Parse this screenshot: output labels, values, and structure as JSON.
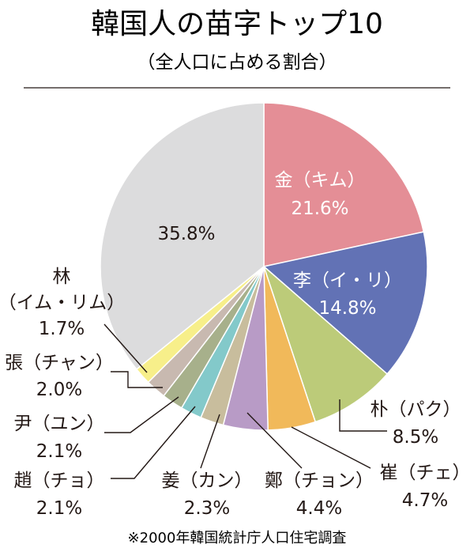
{
  "chart_data": {
    "type": "pie",
    "title": "韓国人の苗字トップ10",
    "subtitle": "（全人口に占める割合）",
    "source_note": "※2000年韓国統計庁人口住宅調査",
    "categories": [
      "金（キム）",
      "李（イ・リ）",
      "朴（パク）",
      "崔（チェ）",
      "鄭（チョン）",
      "姜（カン）",
      "趙（チョ）",
      "尹（ユン）",
      "張（チャン）",
      "林（イム・リム）",
      ""
    ],
    "values": [
      21.6,
      14.8,
      8.5,
      4.7,
      4.4,
      2.3,
      2.1,
      2.1,
      2.0,
      1.7,
      35.8
    ],
    "value_labels": [
      "21.6%",
      "14.8%",
      "8.5%",
      "4.7%",
      "4.4%",
      "2.3%",
      "2.1%",
      "2.1%",
      "2.0%",
      "1.7%",
      "35.8%"
    ],
    "colors": [
      "#e48e96",
      "#6272b5",
      "#bccb79",
      "#f1b95a",
      "#b89bc6",
      "#c8bd9d",
      "#83c9ca",
      "#a7b08b",
      "#c8b9b0",
      "#f7ef8a",
      "#dcdcdd"
    ],
    "start_angle_deg": 0,
    "direction": "clockwise"
  }
}
